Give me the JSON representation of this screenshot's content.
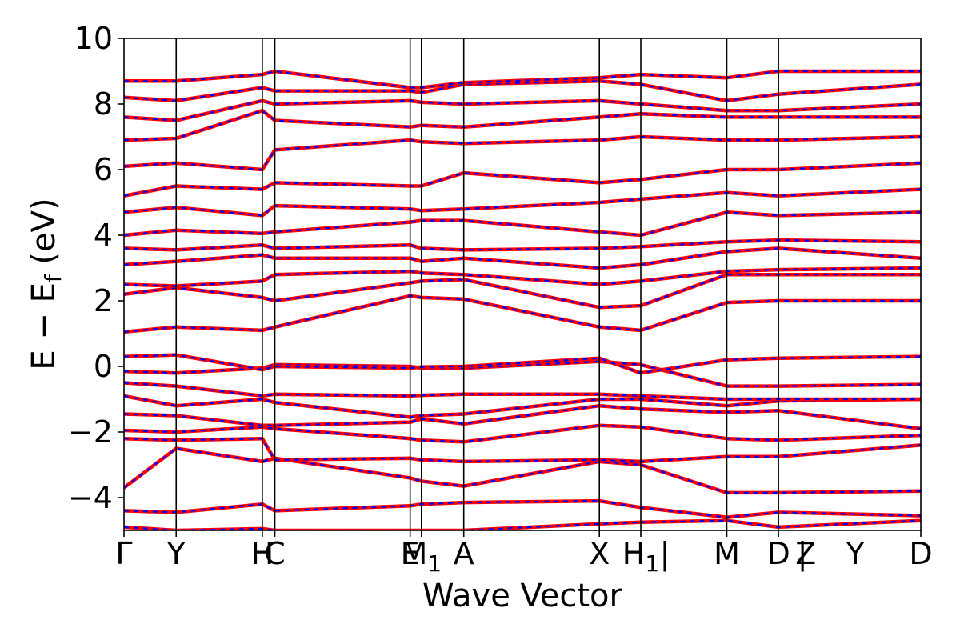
{
  "chart_data": {
    "type": "line",
    "title": "",
    "xlabel": "Wave Vector",
    "ylabel": "E − E_f (eV)",
    "ylabel_parts": {
      "main": "E − E",
      "sub": "f",
      "unit": " (eV)"
    },
    "ylim": [
      -5,
      10
    ],
    "yticks": [
      -4,
      -2,
      0,
      2,
      4,
      6,
      8,
      10
    ],
    "ytick_labels": [
      "−4",
      "−2",
      "0",
      "2",
      "4",
      "6",
      "8",
      "10"
    ],
    "grid": false,
    "colors": {
      "dft": "#ff0000",
      "model": "#0000ff"
    },
    "kpath": {
      "positions": [
        0,
        0.0655,
        0.1736,
        0.1893,
        0.3591,
        0.3733,
        0.4264,
        0.5966,
        0.6486,
        0.7565,
        0.8214,
        1.0
      ],
      "labels": [
        "Γ",
        "Y",
        "H",
        "C",
        "E",
        "M",
        "A",
        "X",
        "H",
        "M",
        "D",
        "D"
      ],
      "label_subs": [
        "",
        "",
        "",
        "",
        "",
        "1",
        "",
        "",
        "1",
        "",
        "",
        ""
      ],
      "separators": [
        "",
        "",
        "",
        "",
        "",
        "",
        "",
        "",
        "|",
        "",
        "|",
        ""
      ],
      "extra_labels": [
        "Z",
        "Y"
      ]
    },
    "series": [
      {
        "x": [
          0,
          0.0655,
          0.1736,
          0.1893,
          0.3591,
          0.3733,
          0.4264,
          0.5966,
          0.6486,
          0.7565,
          0.8214,
          1.0
        ],
        "y": [
          -4.9,
          -5.0,
          -4.95,
          -5.0,
          -5.0,
          -5.0,
          -5.0,
          -4.8,
          -4.75,
          -4.7,
          -4.9,
          -4.7
        ]
      },
      {
        "x": [
          0,
          0.0655,
          0.1736,
          0.1893,
          0.3591,
          0.3733,
          0.4264,
          0.5966,
          0.6486,
          0.7565,
          0.8214,
          1.0
        ],
        "y": [
          -4.4,
          -4.45,
          -4.2,
          -4.4,
          -4.25,
          -4.2,
          -4.15,
          -4.1,
          -4.3,
          -4.6,
          -4.45,
          -4.55
        ]
      },
      {
        "x": [
          0,
          0.0655,
          0.1736,
          0.1893,
          0.3591,
          0.3733,
          0.4264,
          0.5966,
          0.6486,
          0.7565,
          0.8214,
          1.0
        ],
        "y": [
          -3.7,
          -2.5,
          -2.9,
          -2.8,
          -3.4,
          -3.5,
          -3.65,
          -2.9,
          -3.0,
          -3.85,
          -3.85,
          -3.8
        ]
      },
      {
        "x": [
          0,
          0.0655,
          0.1736,
          0.1893,
          0.3591,
          0.3733,
          0.4264,
          0.5966,
          0.6486,
          0.7565,
          0.8214,
          1.0
        ],
        "y": [
          -2.2,
          -2.25,
          -2.2,
          -2.85,
          -2.8,
          -2.85,
          -2.9,
          -2.85,
          -2.9,
          -2.75,
          -2.75,
          -2.4
        ]
      },
      {
        "x": [
          0,
          0.0655,
          0.1736,
          0.1893,
          0.3591,
          0.3733,
          0.4264,
          0.5966,
          0.6486,
          0.7565,
          0.8214,
          1.0
        ],
        "y": [
          -1.95,
          -2.0,
          -1.85,
          -1.9,
          -2.2,
          -2.25,
          -2.3,
          -1.8,
          -1.85,
          -2.2,
          -2.25,
          -2.1
        ]
      },
      {
        "x": [
          0,
          0.0655,
          0.1736,
          0.1893,
          0.3591,
          0.3733,
          0.4264,
          0.5966,
          0.6486,
          0.7565,
          0.8214,
          1.0
        ],
        "y": [
          -1.45,
          -1.5,
          -1.8,
          -1.8,
          -1.7,
          -1.6,
          -1.75,
          -1.2,
          -1.3,
          -1.4,
          -1.35,
          -1.9
        ]
      },
      {
        "x": [
          0,
          0.0655,
          0.1736,
          0.1893,
          0.3591,
          0.3733,
          0.4264,
          0.5966,
          0.6486,
          0.7565,
          0.8214,
          1.0
        ],
        "y": [
          -0.9,
          -1.2,
          -1.0,
          -1.1,
          -1.55,
          -1.5,
          -1.45,
          -1.0,
          -1.0,
          -1.2,
          -1.05,
          -1.0
        ]
      },
      {
        "x": [
          0,
          0.0655,
          0.1736,
          0.1893,
          0.3591,
          0.3733,
          0.4264,
          0.5966,
          0.6486,
          0.7565,
          0.8214,
          1.0
        ],
        "y": [
          -0.5,
          -0.6,
          -0.9,
          -0.85,
          -0.9,
          -0.88,
          -0.85,
          -0.85,
          -0.9,
          -1.0,
          -1.0,
          -1.0
        ]
      },
      {
        "x": [
          0,
          0.0655,
          0.1736,
          0.1893,
          0.3591,
          0.3733,
          0.4264,
          0.5966,
          0.6486,
          0.7565,
          0.8214,
          1.0
        ],
        "y": [
          -0.15,
          -0.2,
          -0.05,
          0.05,
          0.0,
          -0.05,
          -0.05,
          0.15,
          0.05,
          -0.6,
          -0.6,
          -0.55
        ]
      },
      {
        "x": [
          0,
          0.0655,
          0.1736,
          0.1893,
          0.3591,
          0.3733,
          0.4264,
          0.5966,
          0.6486,
          0.7565,
          0.8214,
          1.0
        ],
        "y": [
          0.3,
          0.35,
          -0.1,
          0.0,
          -0.05,
          -0.02,
          0.0,
          0.25,
          -0.2,
          0.2,
          0.25,
          0.3
        ]
      },
      {
        "x": [
          0,
          0.0655,
          0.1736,
          0.1893,
          0.3591,
          0.3733,
          0.4264,
          0.5966,
          0.6486,
          0.7565,
          0.8214,
          1.0
        ],
        "y": [
          1.05,
          1.2,
          1.1,
          1.2,
          2.15,
          2.1,
          2.05,
          1.2,
          1.1,
          1.95,
          2.0,
          2.0
        ]
      },
      {
        "x": [
          0,
          0.0655,
          0.1736,
          0.1893,
          0.3591,
          0.3733,
          0.4264,
          0.5966,
          0.6486,
          0.7565,
          0.8214,
          1.0
        ],
        "y": [
          2.2,
          2.4,
          2.1,
          2.0,
          2.55,
          2.6,
          2.65,
          1.8,
          1.85,
          2.8,
          2.8,
          2.8
        ]
      },
      {
        "x": [
          0,
          0.0655,
          0.1736,
          0.1893,
          0.3591,
          0.3733,
          0.4264,
          0.5966,
          0.6486,
          0.7565,
          0.8214,
          1.0
        ],
        "y": [
          2.5,
          2.45,
          2.6,
          2.8,
          2.9,
          2.85,
          2.8,
          2.5,
          2.6,
          2.9,
          2.95,
          3.0
        ]
      },
      {
        "x": [
          0,
          0.0655,
          0.1736,
          0.1893,
          0.3591,
          0.3733,
          0.4264,
          0.5966,
          0.6486,
          0.7565,
          0.8214,
          1.0
        ],
        "y": [
          3.1,
          3.2,
          3.4,
          3.3,
          3.3,
          3.2,
          3.3,
          3.0,
          3.1,
          3.5,
          3.6,
          3.3
        ]
      },
      {
        "x": [
          0,
          0.0655,
          0.1736,
          0.1893,
          0.3591,
          0.3733,
          0.4264,
          0.5966,
          0.6486,
          0.7565,
          0.8214,
          1.0
        ],
        "y": [
          3.6,
          3.55,
          3.7,
          3.6,
          3.7,
          3.6,
          3.55,
          3.6,
          3.65,
          3.8,
          3.85,
          3.8
        ]
      },
      {
        "x": [
          0,
          0.0655,
          0.1736,
          0.1893,
          0.3591,
          0.3733,
          0.4264,
          0.5966,
          0.6486,
          0.7565,
          0.8214,
          1.0
        ],
        "y": [
          4.0,
          4.15,
          4.05,
          4.1,
          4.4,
          4.45,
          4.45,
          4.1,
          4.0,
          4.7,
          4.6,
          4.7
        ]
      },
      {
        "x": [
          0,
          0.0655,
          0.1736,
          0.1893,
          0.3591,
          0.3733,
          0.4264,
          0.5966,
          0.6486,
          0.7565,
          0.8214,
          1.0
        ],
        "y": [
          4.7,
          4.85,
          4.6,
          4.9,
          4.8,
          4.75,
          4.8,
          5.0,
          5.1,
          5.3,
          5.2,
          5.4
        ]
      },
      {
        "x": [
          0,
          0.0655,
          0.1736,
          0.1893,
          0.3591,
          0.3733,
          0.4264,
          0.5966,
          0.6486,
          0.7565,
          0.8214,
          1.0
        ],
        "y": [
          5.2,
          5.5,
          5.4,
          5.6,
          5.5,
          5.5,
          5.9,
          5.6,
          5.7,
          6.0,
          6.0,
          6.2
        ]
      },
      {
        "x": [
          0,
          0.0655,
          0.1736,
          0.1893,
          0.3591,
          0.3733,
          0.4264,
          0.5966,
          0.6486,
          0.7565,
          0.8214,
          1.0
        ],
        "y": [
          6.1,
          6.2,
          6.0,
          6.6,
          6.9,
          6.85,
          6.8,
          6.9,
          7.0,
          6.9,
          6.9,
          7.0
        ]
      },
      {
        "x": [
          0,
          0.0655,
          0.1736,
          0.1893,
          0.3591,
          0.3733,
          0.4264,
          0.5966,
          0.6486,
          0.7565,
          0.8214,
          1.0
        ],
        "y": [
          6.9,
          6.95,
          7.8,
          7.5,
          7.3,
          7.35,
          7.3,
          7.6,
          7.7,
          7.6,
          7.6,
          7.6
        ]
      },
      {
        "x": [
          0,
          0.0655,
          0.1736,
          0.1893,
          0.3591,
          0.3733,
          0.4264,
          0.5966,
          0.6486,
          0.7565,
          0.8214,
          1.0
        ],
        "y": [
          7.6,
          7.5,
          8.1,
          8.0,
          8.1,
          8.05,
          8.0,
          8.1,
          8.0,
          7.8,
          7.8,
          8.0
        ]
      },
      {
        "x": [
          0,
          0.0655,
          0.1736,
          0.1893,
          0.3591,
          0.3733,
          0.4264,
          0.5966,
          0.6486,
          0.7565,
          0.8214,
          1.0
        ],
        "y": [
          8.2,
          8.1,
          8.5,
          8.4,
          8.4,
          8.35,
          8.6,
          8.7,
          8.6,
          8.1,
          8.3,
          8.6
        ]
      },
      {
        "x": [
          0,
          0.0655,
          0.1736,
          0.1893,
          0.3591,
          0.3733,
          0.4264,
          0.5966,
          0.6486,
          0.7565,
          0.8214,
          1.0
        ],
        "y": [
          8.7,
          8.7,
          8.9,
          9.0,
          8.5,
          8.5,
          8.65,
          8.8,
          8.9,
          8.8,
          9.0,
          9.0
        ]
      }
    ]
  }
}
